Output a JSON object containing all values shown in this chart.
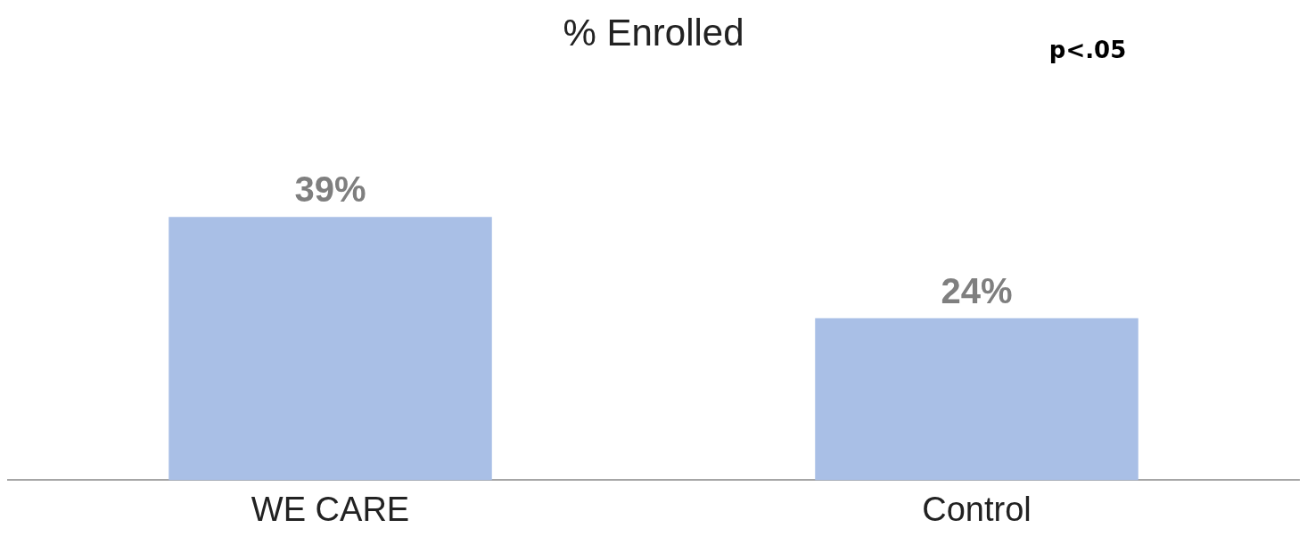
{
  "chart_data": {
    "type": "bar",
    "title": "% Enrolled",
    "categories": [
      "WE CARE",
      "Control"
    ],
    "values": [
      39,
      24
    ],
    "value_labels": [
      "39%",
      "24%"
    ],
    "color": "#a9bfe6",
    "grid": false,
    "legend": false,
    "annotations": [
      "p<.05"
    ]
  }
}
